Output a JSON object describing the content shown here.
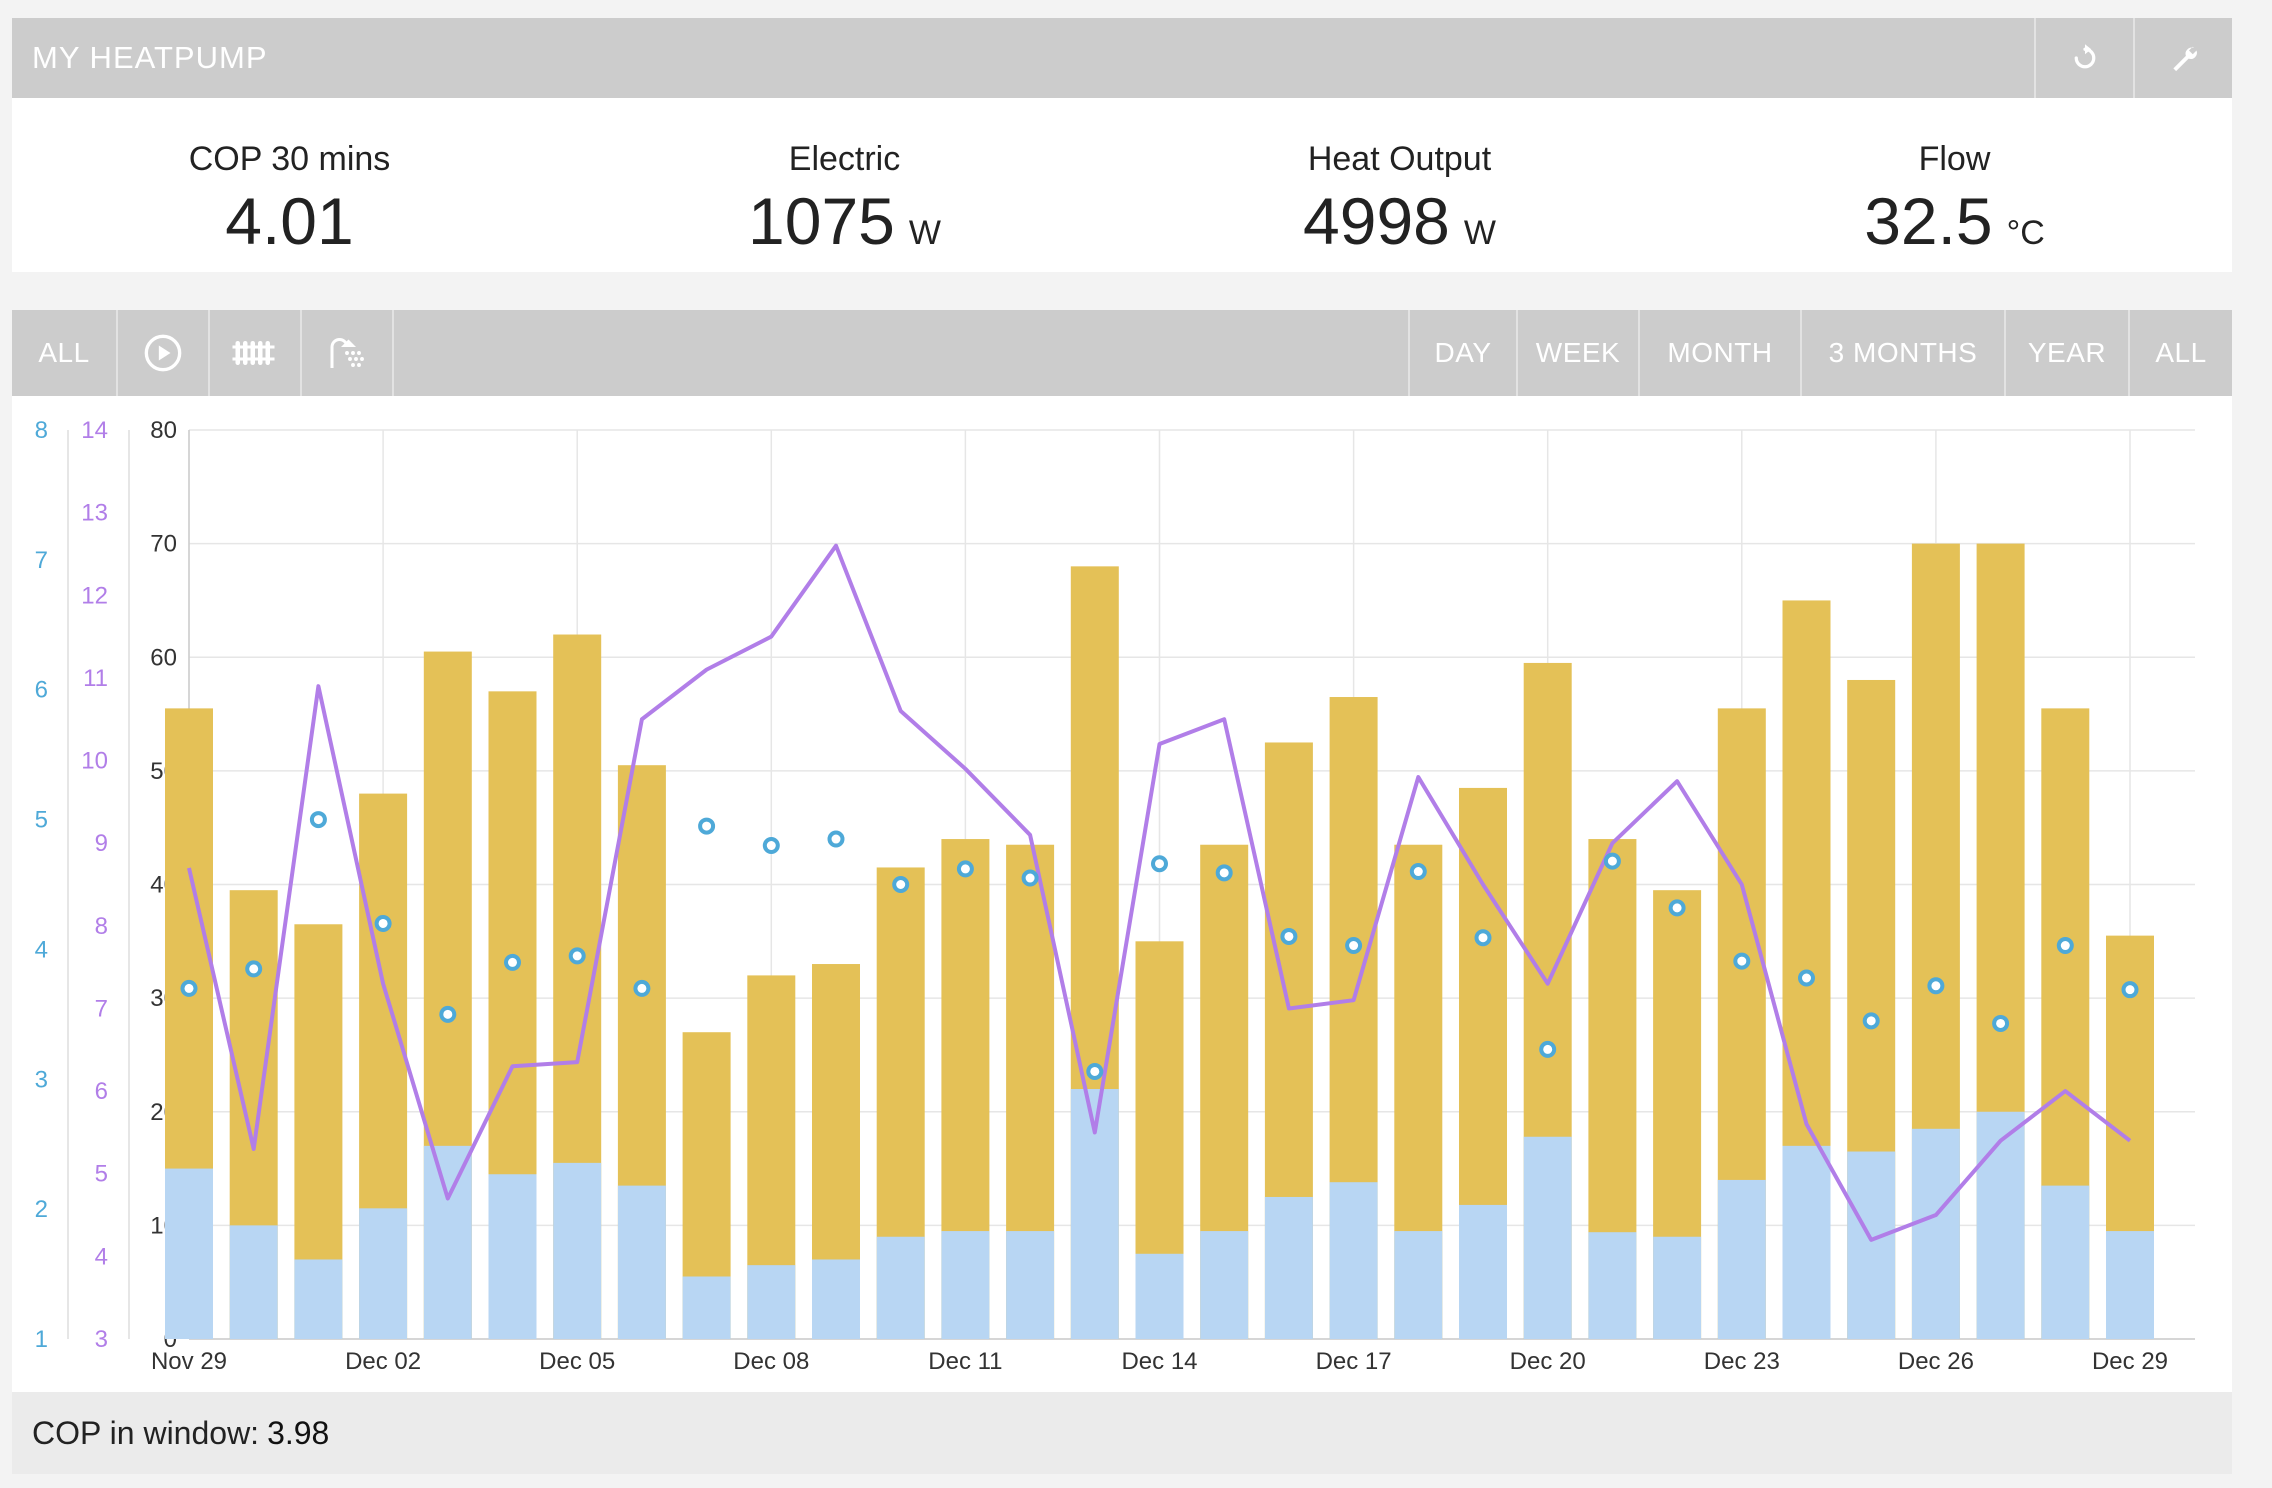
{
  "app": {
    "title": "MY HEATPUMP"
  },
  "icons": {
    "refresh": "refresh-icon",
    "settings": "wrench-icon",
    "play": "play-circle-icon",
    "radiator": "radiator-icon",
    "shower": "shower-icon"
  },
  "stats": [
    {
      "label": "COP 30 mins",
      "value": "4.01",
      "unit": ""
    },
    {
      "label": "Electric",
      "value": "1075",
      "unit": "W"
    },
    {
      "label": "Heat Output",
      "value": "4998",
      "unit": "W"
    },
    {
      "label": "Flow",
      "value": "32.5",
      "unit": "°C"
    }
  ],
  "toolbar": {
    "left": {
      "all": "ALL"
    },
    "ranges": [
      "DAY",
      "WEEK",
      "MONTH",
      "3 MONTHS",
      "YEAR",
      "ALL"
    ]
  },
  "footer": {
    "label": "COP in window:",
    "value": "3.98"
  },
  "colors": {
    "heat": "#e4c157",
    "electric": "#b8d6f3",
    "cop": "#4ea9d8",
    "temp": "#b17ee8",
    "axis_cop": "#4ea9d8",
    "axis_temp": "#b17ee8"
  },
  "chart_data": {
    "type": "bar",
    "x_ticks": [
      "Nov 29",
      "Dec 02",
      "Dec 05",
      "Dec 08",
      "Dec 11",
      "Dec 14",
      "Dec 17",
      "Dec 20",
      "Dec 23",
      "Dec 26",
      "Dec 29"
    ],
    "axes": {
      "left_main": {
        "ticks": [
          0,
          10,
          20,
          30,
          40,
          50,
          60,
          70,
          80
        ],
        "ylim": [
          0,
          80
        ]
      },
      "left_cop": {
        "ticks": [
          1,
          2,
          3,
          4,
          5,
          6,
          7,
          8
        ],
        "ylim": [
          1,
          8
        ]
      },
      "left_temp": {
        "ticks": [
          3,
          4,
          5,
          6,
          7,
          8,
          9,
          10,
          11,
          12,
          13,
          14
        ],
        "ylim": [
          3,
          14
        ]
      }
    },
    "series": [
      {
        "name": "heat",
        "axis": "left_main",
        "type": "bar",
        "values": [
          55.5,
          39.5,
          36.5,
          48,
          60.5,
          57,
          62,
          50.5,
          27,
          32,
          33,
          41.5,
          44,
          43.5,
          68,
          35,
          43.5,
          52.5,
          56.5,
          43.5,
          48.5,
          59.5,
          44,
          39.5,
          55.5,
          65,
          58,
          70,
          70,
          55.5,
          35.5
        ]
      },
      {
        "name": "electric",
        "axis": "left_main",
        "type": "bar",
        "values": [
          15,
          10,
          7,
          11.5,
          17,
          14.5,
          15.5,
          13.5,
          5.5,
          6.5,
          7,
          9,
          9.5,
          9.5,
          22,
          7.5,
          9.5,
          12.5,
          13.8,
          9.5,
          11.8,
          17.8,
          9.4,
          9,
          14,
          17,
          16.5,
          18.5,
          20,
          13.5,
          9.5
        ]
      },
      {
        "name": "cop",
        "axis": "left_cop",
        "type": "scatter",
        "values": [
          3.7,
          3.85,
          5.0,
          4.2,
          3.5,
          3.9,
          3.95,
          3.7,
          4.95,
          4.8,
          4.85,
          4.5,
          4.62,
          4.55,
          3.06,
          4.66,
          4.59,
          4.1,
          4.03,
          4.6,
          4.09,
          3.23,
          4.68,
          4.32,
          3.91,
          3.78,
          3.45,
          3.72,
          3.43,
          4.03,
          3.69
        ]
      },
      {
        "name": "temp",
        "axis": "left_temp",
        "type": "line",
        "values": [
          8.7,
          5.3,
          10.9,
          7.3,
          4.7,
          6.3,
          6.35,
          10.5,
          11.1,
          11.5,
          12.6,
          10.6,
          9.9,
          9.1,
          5.5,
          10.2,
          10.5,
          7.0,
          7.1,
          9.8,
          8.5,
          7.3,
          9.0,
          9.75,
          8.5,
          5.6,
          4.2,
          4.5,
          5.4,
          6.0,
          5.4
        ]
      }
    ]
  }
}
